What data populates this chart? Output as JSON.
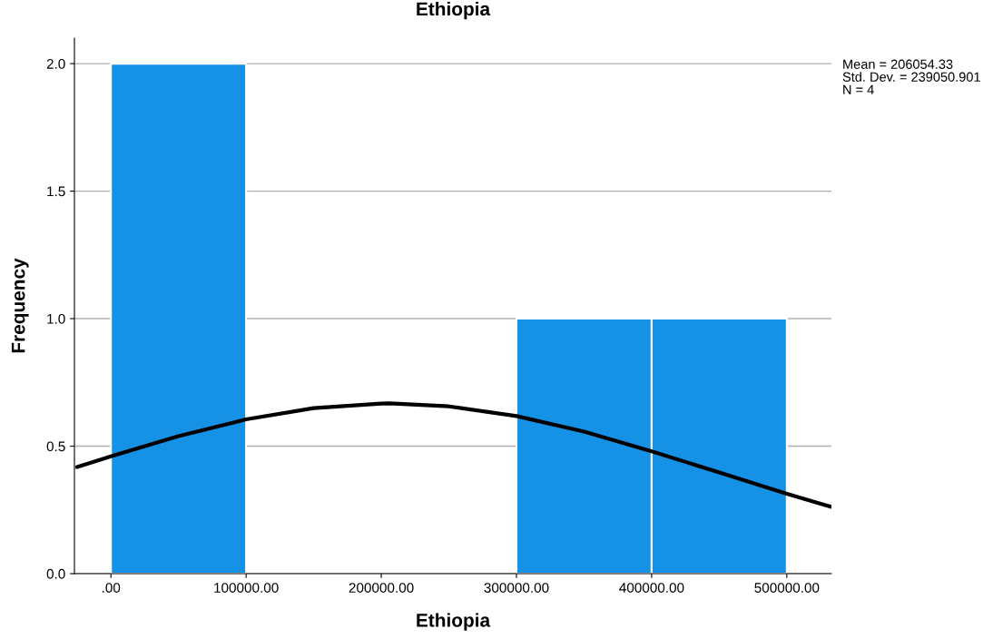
{
  "chart_data": {
    "type": "histogram",
    "title": "Ethiopia",
    "xlabel": "Ethiopia",
    "ylabel": "Frequency",
    "bins": [
      0,
      100000,
      200000,
      300000,
      400000,
      500000
    ],
    "values": [
      2,
      0,
      0,
      1,
      1
    ],
    "color": "#1591e6",
    "series": [
      {
        "type": "line",
        "color": "#000000",
        "x": [
          -25000,
          0,
          50000,
          100000,
          150000,
          200000,
          206054,
          250000,
          300000,
          350000,
          400000,
          450000,
          500000,
          525000,
          533000
        ],
        "values": [
          0.418,
          0.46,
          0.539,
          0.605,
          0.649,
          0.667,
          0.668,
          0.656,
          0.618,
          0.557,
          0.48,
          0.397,
          0.313,
          0.274,
          0.262
        ]
      }
    ],
    "xlim": [
      -27000,
      533000
    ],
    "ylim": [
      0,
      2.1
    ],
    "xticks": [
      {
        "value": 0,
        "label": ".00"
      },
      {
        "value": 100000,
        "label": "100000.00"
      },
      {
        "value": 200000,
        "label": "200000.00"
      },
      {
        "value": 300000,
        "label": "300000.00"
      },
      {
        "value": 400000,
        "label": "400000.00"
      },
      {
        "value": 500000,
        "label": "500000.00"
      }
    ],
    "yticks": [
      {
        "value": 0,
        "label": "0.0"
      },
      {
        "value": 0.5,
        "label": "0.5"
      },
      {
        "value": 1,
        "label": "1.0"
      },
      {
        "value": 1.5,
        "label": "1.5"
      },
      {
        "value": 2,
        "label": "2.0"
      }
    ],
    "grid": "y",
    "annotations": [
      "Mean = 206054.33",
      "Std. Dev. = 239050.901",
      "N = 4"
    ]
  }
}
